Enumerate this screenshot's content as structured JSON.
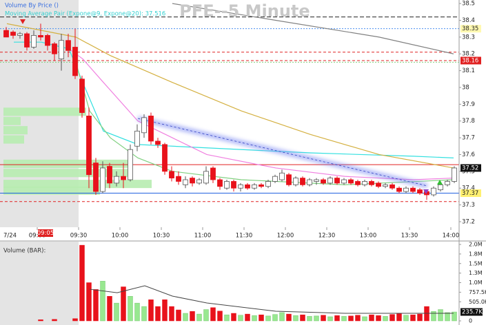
{
  "chart_data": [
    {
      "type": "candlestick",
      "title": "PFE--5 Minute",
      "legend": [
        "Volume By Price ()",
        "Moving Average Pair (Expone@9, Expone@20): 37.516"
      ],
      "date_label": "7/24",
      "cursor_label": "09:05",
      "bar_minutes": 5,
      "session_start": 570,
      "xlim": [
        513,
        846
      ],
      "ylim": [
        37.167,
        38.521
      ],
      "xticks": [
        {
          "value": 540,
          "label": "09:00"
        },
        {
          "value": 570,
          "label": "09:30"
        },
        {
          "value": 600,
          "label": "10:00"
        },
        {
          "value": 630,
          "label": "10:30"
        },
        {
          "value": 660,
          "label": "11:00"
        },
        {
          "value": 690,
          "label": "11:30"
        },
        {
          "value": 720,
          "label": "12:00"
        },
        {
          "value": 750,
          "label": "12:30"
        },
        {
          "value": 780,
          "label": "13:00"
        },
        {
          "value": 810,
          "label": "13:30"
        },
        {
          "value": 840,
          "label": "14:00"
        }
      ],
      "yticks": [
        38.5,
        38.4,
        38.3,
        38.2,
        38.1,
        38,
        37.9,
        37.8,
        37.7,
        37.6,
        37.5,
        37.4,
        37.3,
        37.2
      ],
      "x": [
        515,
        520,
        525,
        530,
        535,
        540,
        545,
        550,
        555,
        560,
        565,
        570,
        575,
        580,
        585,
        590,
        595,
        600,
        605,
        610,
        615,
        620,
        625,
        630,
        635,
        640,
        645,
        650,
        655,
        660,
        665,
        670,
        675,
        680,
        685,
        690,
        695,
        700,
        705,
        710,
        715,
        720,
        725,
        730,
        735,
        740,
        745,
        750,
        755,
        760,
        765,
        770,
        775,
        780,
        785,
        790,
        795,
        800,
        805,
        810,
        815,
        820,
        825,
        830,
        835,
        840
      ],
      "open": [
        38.34,
        38.33,
        38.31,
        38.32,
        38.24,
        38.31,
        38.31,
        38.26,
        38.17,
        38.28,
        38.24,
        38.05,
        37.83,
        37.55,
        37.38,
        37.53,
        37.43,
        37.47,
        37.45,
        37.65,
        37.73,
        37.83,
        37.68,
        37.66,
        37.5,
        37.47,
        37.42,
        37.46,
        37.43,
        37.43,
        37.52,
        37.45,
        37.4,
        37.44,
        37.4,
        37.42,
        37.4,
        37.42,
        37.41,
        37.44,
        37.45,
        37.48,
        37.42,
        37.46,
        37.42,
        37.44,
        37.45,
        37.43,
        37.46,
        37.43,
        37.45,
        37.44,
        37.42,
        37.44,
        37.43,
        37.41,
        37.42,
        37.4,
        37.38,
        37.4,
        37.39,
        37.38,
        37.36,
        37.39,
        37.42,
        37.44
      ],
      "high": [
        38.36,
        38.34,
        38.33,
        38.33,
        38.34,
        38.38,
        38.32,
        38.27,
        38.32,
        38.32,
        38.35,
        38.07,
        37.88,
        37.58,
        37.56,
        37.55,
        37.5,
        37.55,
        37.66,
        37.78,
        37.84,
        37.85,
        37.7,
        37.67,
        37.53,
        37.5,
        37.47,
        37.47,
        37.46,
        37.53,
        37.53,
        37.46,
        37.45,
        37.45,
        37.43,
        37.43,
        37.43,
        37.43,
        37.45,
        37.48,
        37.51,
        37.49,
        37.47,
        37.47,
        37.46,
        37.46,
        37.46,
        37.47,
        37.47,
        37.46,
        37.46,
        37.45,
        37.45,
        37.45,
        37.44,
        37.43,
        37.43,
        37.41,
        37.41,
        37.41,
        37.4,
        37.39,
        37.41,
        37.43,
        37.45,
        37.53
      ],
      "low": [
        38.3,
        38.29,
        38.29,
        38.22,
        38.23,
        38.28,
        38.22,
        38.16,
        38.1,
        38.18,
        38.05,
        37.82,
        37.4,
        37.36,
        37.37,
        37.4,
        37.41,
        37.4,
        37.44,
        37.62,
        37.7,
        37.66,
        37.64,
        37.48,
        37.44,
        37.42,
        37.4,
        37.41,
        37.42,
        37.42,
        37.43,
        37.39,
        37.39,
        37.38,
        37.38,
        37.39,
        37.39,
        37.4,
        37.4,
        37.43,
        37.44,
        37.41,
        37.41,
        37.41,
        37.41,
        37.42,
        37.42,
        37.42,
        37.42,
        37.42,
        37.42,
        37.41,
        37.41,
        37.41,
        37.4,
        37.4,
        37.39,
        37.37,
        37.37,
        37.37,
        37.36,
        37.33,
        37.35,
        37.38,
        37.41,
        37.43
      ],
      "close": [
        38.3,
        38.31,
        38.32,
        38.24,
        38.31,
        38.3,
        38.25,
        38.2,
        38.28,
        38.22,
        38.07,
        37.85,
        37.48,
        37.38,
        37.52,
        37.43,
        37.47,
        37.45,
        37.63,
        37.74,
        37.82,
        37.68,
        37.66,
        37.5,
        37.46,
        37.44,
        37.45,
        37.43,
        37.45,
        37.5,
        37.45,
        37.41,
        37.44,
        37.4,
        37.42,
        37.4,
        37.42,
        37.41,
        37.44,
        37.47,
        37.49,
        37.42,
        37.46,
        37.42,
        37.45,
        37.45,
        37.43,
        37.46,
        37.43,
        37.45,
        37.43,
        37.42,
        37.44,
        37.42,
        37.41,
        37.42,
        37.4,
        37.38,
        37.4,
        37.38,
        37.37,
        37.36,
        37.4,
        37.42,
        37.44,
        37.52
      ],
      "up_color": "#ffffff",
      "down_color": "#e8121b",
      "levels": [
        {
          "value": 38.42,
          "color": "#222222",
          "dash": "6 3"
        },
        {
          "value": 38.35,
          "color": "#4a8ff0",
          "dash": "2 2",
          "tag_color": "#fff8b0"
        },
        {
          "value": 38.21,
          "color": "#e02020",
          "dash": "4 3"
        },
        {
          "value": 38.16,
          "color": "#e02020",
          "dash": "4 3",
          "tag_color": "#e02020"
        },
        {
          "value": 38.15,
          "color": "#80d080",
          "dash": "2 2"
        },
        {
          "value": 37.54,
          "color": "#e02020",
          "dash": "0"
        },
        {
          "value": 37.37,
          "color": "#2060e0",
          "dash": "0",
          "tag_color": "#fff070"
        },
        {
          "value": 37.32,
          "color": "#e02020",
          "dash": "4 3"
        }
      ],
      "overlays": [
        {
          "color": "#33e0e0",
          "x": [
            523,
            543,
            563,
            573,
            588,
            613,
            663,
            738,
            813,
            842
          ],
          "values": [
            38.27,
            38.27,
            38.23,
            38.03,
            37.74,
            37.66,
            37.64,
            37.61,
            37.59,
            37.58
          ]
        },
        {
          "color": "#f080e0",
          "x": [
            563,
            573,
            588,
            613,
            638,
            663,
            713,
            763,
            813,
            842
          ],
          "values": [
            38.23,
            38.17,
            38.03,
            37.8,
            37.7,
            37.6,
            37.52,
            37.47,
            37.45,
            37.46
          ]
        },
        {
          "color": "#80d080",
          "x": [
            568,
            578,
            593,
            613,
            638,
            688,
            763,
            842
          ],
          "values": [
            38.15,
            37.86,
            37.7,
            37.58,
            37.5,
            37.45,
            37.42,
            37.45
          ]
        },
        {
          "color": "#d4b040",
          "x": [
            518,
            543,
            568,
            593,
            638,
            688,
            738,
            788,
            842
          ],
          "values": [
            38.38,
            38.34,
            38.3,
            38.19,
            38.03,
            37.86,
            37.72,
            37.6,
            37.52
          ]
        },
        {
          "color": "#808080",
          "x": [
            638,
            713,
            788,
            842
          ],
          "values": [
            38.5,
            38.4,
            38.3,
            38.2
          ]
        }
      ],
      "volume_by_price": {
        "color": "#b7ecb0",
        "prices": [
          37.855,
          37.8,
          37.745,
          37.69,
          37.545,
          37.49,
          37.425,
          37.385
        ],
        "values": [
          1200000,
          250000,
          350000,
          300000,
          1850000,
          1850000,
          2150000,
          1400000
        ]
      }
    },
    {
      "type": "bar",
      "title": "Volume (BAR):",
      "ylim": [
        0,
        2020000
      ],
      "yticks": [
        {
          "value": 2020000,
          "label": "2.0M"
        },
        {
          "value": 1767500,
          "label": "1.8M"
        },
        {
          "value": 1515000,
          "label": "1.5M"
        },
        {
          "value": 1262500,
          "label": "1.3M"
        },
        {
          "value": 1010000,
          "label": "1.0M"
        },
        {
          "value": 757500,
          "label": "757.5K"
        },
        {
          "value": 505000,
          "label": "505.0K"
        },
        0
      ],
      "up_color": "#98e890",
      "down_color": "#e8121b",
      "values": [
        0,
        0,
        0,
        0,
        0,
        30000,
        0,
        40000,
        0,
        0,
        60000,
        2000000,
        1010000,
        830000,
        1050000,
        650000,
        470000,
        900000,
        650000,
        470000,
        380000,
        560000,
        380000,
        560000,
        380000,
        290000,
        200000,
        250000,
        180000,
        300000,
        350000,
        260000,
        160000,
        200000,
        150000,
        180000,
        140000,
        160000,
        130000,
        170000,
        220000,
        180000,
        140000,
        160000,
        120000,
        130000,
        150000,
        110000,
        140000,
        120000,
        130000,
        150000,
        110000,
        160000,
        140000,
        120000,
        170000,
        200000,
        150000,
        160000,
        180000,
        380000,
        250000,
        300000,
        220000,
        235700
      ],
      "value_labels": [
        null,
        null,
        null,
        null,
        null,
        null,
        null,
        null,
        null,
        null,
        null,
        null,
        null,
        null,
        null,
        null,
        null,
        null,
        null,
        null,
        null,
        null,
        null,
        null,
        null,
        null,
        null,
        null,
        null,
        null,
        null,
        null,
        null,
        null,
        null,
        null,
        null,
        null,
        null,
        null,
        null,
        null,
        null,
        null,
        null,
        null,
        null,
        null,
        null,
        null,
        null,
        null,
        null,
        null,
        null,
        null,
        null,
        null,
        null,
        null,
        null,
        null,
        null,
        null,
        null,
        "235.7K"
      ],
      "overlay": {
        "color": "#444444",
        "x": [
          578,
          598,
          618,
          638,
          663,
          713,
          763,
          813,
          842
        ],
        "values": [
          836000,
          745000,
          927000,
          655000,
          473000,
          255000,
          200000,
          200000,
          200000
        ]
      }
    }
  ]
}
